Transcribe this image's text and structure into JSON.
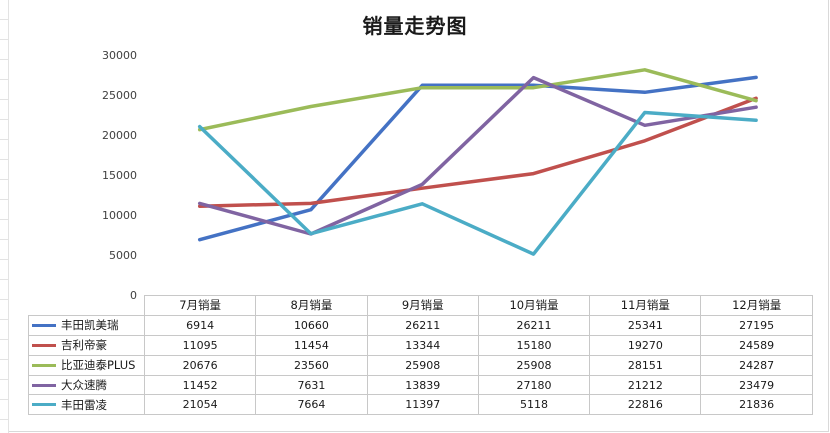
{
  "chart_data": {
    "type": "line",
    "title": "销量走势图",
    "categories": [
      "7月销量",
      "8月销量",
      "9月销量",
      "10月销量",
      "11月销量",
      "12月销量"
    ],
    "ylim": [
      0,
      30000
    ],
    "yticks": [
      "0",
      "5000",
      "10000",
      "15000",
      "20000",
      "25000",
      "30000"
    ],
    "grid": false,
    "legend": "data-table",
    "series": [
      {
        "name": "丰田凯美瑞",
        "color": "#4472c4",
        "values": [
          6914,
          10660,
          26211,
          26211,
          25341,
          27195
        ]
      },
      {
        "name": "吉利帝豪",
        "color": "#c0504d",
        "values": [
          11095,
          11454,
          13344,
          15180,
          19270,
          24589
        ]
      },
      {
        "name": "比亚迪泰PLUS",
        "color": "#9bbb59",
        "values": [
          20676,
          23560,
          25908,
          25908,
          28151,
          24287
        ]
      },
      {
        "name": "大众速腾",
        "color": "#8064a2",
        "values": [
          11452,
          7631,
          13839,
          27180,
          21212,
          23479
        ]
      },
      {
        "name": "丰田雷凌",
        "color": "#4bacc6",
        "values": [
          21054,
          7664,
          11397,
          5118,
          22816,
          21836
        ]
      }
    ]
  }
}
